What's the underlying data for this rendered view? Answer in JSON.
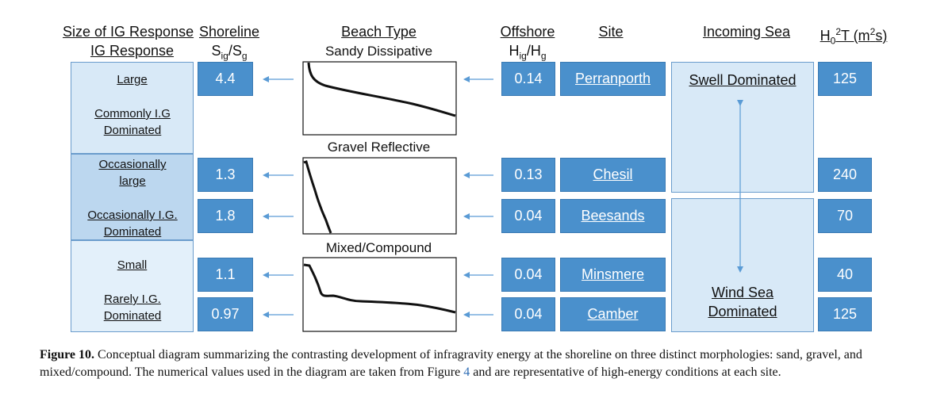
{
  "headers": {
    "ig_line1": "Size of IG Response",
    "ig_line2": "IG Response",
    "shoreline": "Shoreline",
    "shoreline_sub": "Sig/Sg",
    "beach_type": "Beach Type",
    "offshore": "Offshore",
    "offshore_sub": "Hig/Hg",
    "site": "Site",
    "incoming_sea": "Incoming Sea",
    "h0t": "H02T (m2s)"
  },
  "beach_types": {
    "sandy": "Sandy Dissipative",
    "gravel": "Gravel Reflective",
    "mixed": "Mixed/Compound"
  },
  "ig_response": {
    "large": "Large",
    "commonly": "Commonly I.G Dominated",
    "occ_large": "Occasionally large",
    "occ_dominated": "Occasionally I.G. Dominated",
    "small": "Small",
    "rarely": "Rarely I.G. Dominated"
  },
  "rows": [
    {
      "shoreline": "4.4",
      "offshore": "0.14",
      "site": "Perranporth",
      "h0t": "125"
    },
    {
      "shoreline": "1.3",
      "offshore": "0.13",
      "site": "Chesil",
      "h0t": "240"
    },
    {
      "shoreline": "1.8",
      "offshore": "0.04",
      "site": "Beesands",
      "h0t": "70"
    },
    {
      "shoreline": "1.1",
      "offshore": "0.04",
      "site": "Minsmere",
      "h0t": "40"
    },
    {
      "shoreline": "0.97",
      "offshore": "0.04",
      "site": "Camber",
      "h0t": "125"
    }
  ],
  "sea": {
    "swell": "Swell Dominated",
    "wind": "Wind Sea Dominated"
  },
  "caption": {
    "label": "Figure 10.",
    "text_a": " Conceptual diagram summarizing the contrasting development of infragravity energy at the shoreline on three distinct morphologies: sand, gravel, and mixed/compound. The numerical values used in the diagram are taken from Figure ",
    "ref": "4",
    "text_b": " and are representative of high-energy conditions at each site."
  },
  "colors": {
    "box_blue": "#4a90cc",
    "panel_light": "#d8e9f7",
    "panel_mid": "#bcd7ef",
    "arrow": "#5a9bd5"
  }
}
